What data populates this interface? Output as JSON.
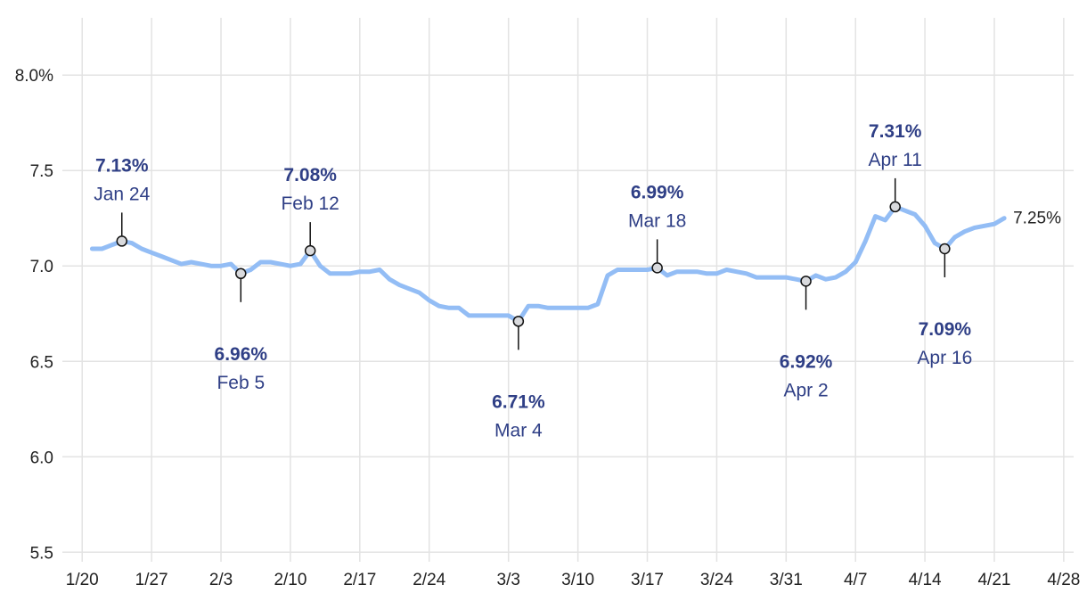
{
  "chart_data": {
    "type": "line",
    "title": "",
    "xlabel": "",
    "ylabel": "",
    "x_range": [
      "2024-01-18",
      "2024-04-29"
    ],
    "ylim": [
      5.45,
      8.3
    ],
    "grid": true,
    "colors": {
      "line": "#93bdf5",
      "annotation": "#2f3f86",
      "grid": "#e3e3e3",
      "marker_fill": "#d9dadd"
    },
    "x_ticks": [
      {
        "date": "2024-01-20",
        "label": "1/20"
      },
      {
        "date": "2024-01-27",
        "label": "1/27"
      },
      {
        "date": "2024-02-03",
        "label": "2/3"
      },
      {
        "date": "2024-02-10",
        "label": "2/10"
      },
      {
        "date": "2024-02-17",
        "label": "2/17"
      },
      {
        "date": "2024-02-24",
        "label": "2/24"
      },
      {
        "date": "2024-03-03",
        "label": "3/3"
      },
      {
        "date": "2024-03-10",
        "label": "3/10"
      },
      {
        "date": "2024-03-17",
        "label": "3/17"
      },
      {
        "date": "2024-03-24",
        "label": "3/24"
      },
      {
        "date": "2024-03-31",
        "label": "3/31"
      },
      {
        "date": "2024-04-07",
        "label": "4/7"
      },
      {
        "date": "2024-04-14",
        "label": "4/14"
      },
      {
        "date": "2024-04-21",
        "label": "4/21"
      },
      {
        "date": "2024-04-28",
        "label": "4/28"
      }
    ],
    "y_ticks": [
      {
        "value": 5.5,
        "label": "5.5"
      },
      {
        "value": 6.0,
        "label": "6.0"
      },
      {
        "value": 6.5,
        "label": "6.5"
      },
      {
        "value": 7.0,
        "label": "7.0"
      },
      {
        "value": 7.5,
        "label": "7.5"
      },
      {
        "value": 8.0,
        "label": "8.0%"
      }
    ],
    "series": [
      {
        "x": [
          "2024-01-21",
          "2024-01-22",
          "2024-01-23",
          "2024-01-24",
          "2024-01-25",
          "2024-01-26",
          "2024-01-27",
          "2024-01-28",
          "2024-01-29",
          "2024-01-30",
          "2024-01-31",
          "2024-02-01",
          "2024-02-02",
          "2024-02-03",
          "2024-02-04",
          "2024-02-05",
          "2024-02-06",
          "2024-02-07",
          "2024-02-08",
          "2024-02-09",
          "2024-02-10",
          "2024-02-11",
          "2024-02-12",
          "2024-02-13",
          "2024-02-14",
          "2024-02-15",
          "2024-02-16",
          "2024-02-17",
          "2024-02-18",
          "2024-02-19",
          "2024-02-20",
          "2024-02-21",
          "2024-02-22",
          "2024-02-23",
          "2024-02-24",
          "2024-02-25",
          "2024-02-26",
          "2024-02-27",
          "2024-02-28",
          "2024-02-29",
          "2024-03-01",
          "2024-03-02",
          "2024-03-03",
          "2024-03-04",
          "2024-03-05",
          "2024-03-06",
          "2024-03-07",
          "2024-03-08",
          "2024-03-09",
          "2024-03-10",
          "2024-03-11",
          "2024-03-12",
          "2024-03-13",
          "2024-03-14",
          "2024-03-15",
          "2024-03-16",
          "2024-03-17",
          "2024-03-18",
          "2024-03-19",
          "2024-03-20",
          "2024-03-21",
          "2024-03-22",
          "2024-03-23",
          "2024-03-24",
          "2024-03-25",
          "2024-03-26",
          "2024-03-27",
          "2024-03-28",
          "2024-03-29",
          "2024-03-30",
          "2024-03-31",
          "2024-04-01",
          "2024-04-02",
          "2024-04-03",
          "2024-04-04",
          "2024-04-05",
          "2024-04-06",
          "2024-04-07",
          "2024-04-08",
          "2024-04-09",
          "2024-04-10",
          "2024-04-11",
          "2024-04-12",
          "2024-04-13",
          "2024-04-14",
          "2024-04-15",
          "2024-04-16",
          "2024-04-17",
          "2024-04-18",
          "2024-04-19",
          "2024-04-20",
          "2024-04-21",
          "2024-04-22"
        ],
        "y": [
          7.09,
          7.09,
          7.11,
          7.13,
          7.12,
          7.09,
          7.07,
          7.05,
          7.03,
          7.01,
          7.02,
          7.01,
          7.0,
          7.0,
          7.01,
          6.96,
          6.98,
          7.02,
          7.02,
          7.01,
          7.0,
          7.01,
          7.08,
          7.0,
          6.96,
          6.96,
          6.96,
          6.97,
          6.97,
          6.98,
          6.93,
          6.9,
          6.88,
          6.86,
          6.82,
          6.79,
          6.78,
          6.78,
          6.74,
          6.74,
          6.74,
          6.74,
          6.74,
          6.71,
          6.79,
          6.79,
          6.78,
          6.78,
          6.78,
          6.78,
          6.78,
          6.8,
          6.95,
          6.98,
          6.98,
          6.98,
          6.98,
          6.99,
          6.95,
          6.97,
          6.97,
          6.97,
          6.96,
          6.96,
          6.98,
          6.97,
          6.96,
          6.94,
          6.94,
          6.94,
          6.94,
          6.93,
          6.92,
          6.95,
          6.93,
          6.94,
          6.97,
          7.02,
          7.13,
          7.26,
          7.24,
          7.31,
          7.29,
          7.27,
          7.21,
          7.12,
          7.09,
          7.15,
          7.18,
          7.2,
          7.21,
          7.22,
          7.25
        ]
      }
    ],
    "annotations": [
      {
        "date": "2024-01-24",
        "value": 7.13,
        "value_label": "7.13%",
        "date_label": "Jan 24",
        "position": "above"
      },
      {
        "date": "2024-02-05",
        "value": 6.96,
        "value_label": "6.96%",
        "date_label": "Feb 5",
        "position": "below"
      },
      {
        "date": "2024-02-12",
        "value": 7.08,
        "value_label": "7.08%",
        "date_label": "Feb 12",
        "position": "above"
      },
      {
        "date": "2024-03-04",
        "value": 6.71,
        "value_label": "6.71%",
        "date_label": "Mar 4",
        "position": "below"
      },
      {
        "date": "2024-03-18",
        "value": 6.99,
        "value_label": "6.99%",
        "date_label": "Mar 18",
        "position": "above"
      },
      {
        "date": "2024-04-02",
        "value": 6.92,
        "value_label": "6.92%",
        "date_label": "Apr 2",
        "position": "below"
      },
      {
        "date": "2024-04-11",
        "value": 7.31,
        "value_label": "7.31%",
        "date_label": "Apr 11",
        "position": "above"
      },
      {
        "date": "2024-04-16",
        "value": 7.09,
        "value_label": "7.09%",
        "date_label": "Apr 16",
        "position": "below"
      }
    ],
    "end_label": {
      "date": "2024-04-22",
      "value": 7.25,
      "label": "7.25%"
    }
  }
}
